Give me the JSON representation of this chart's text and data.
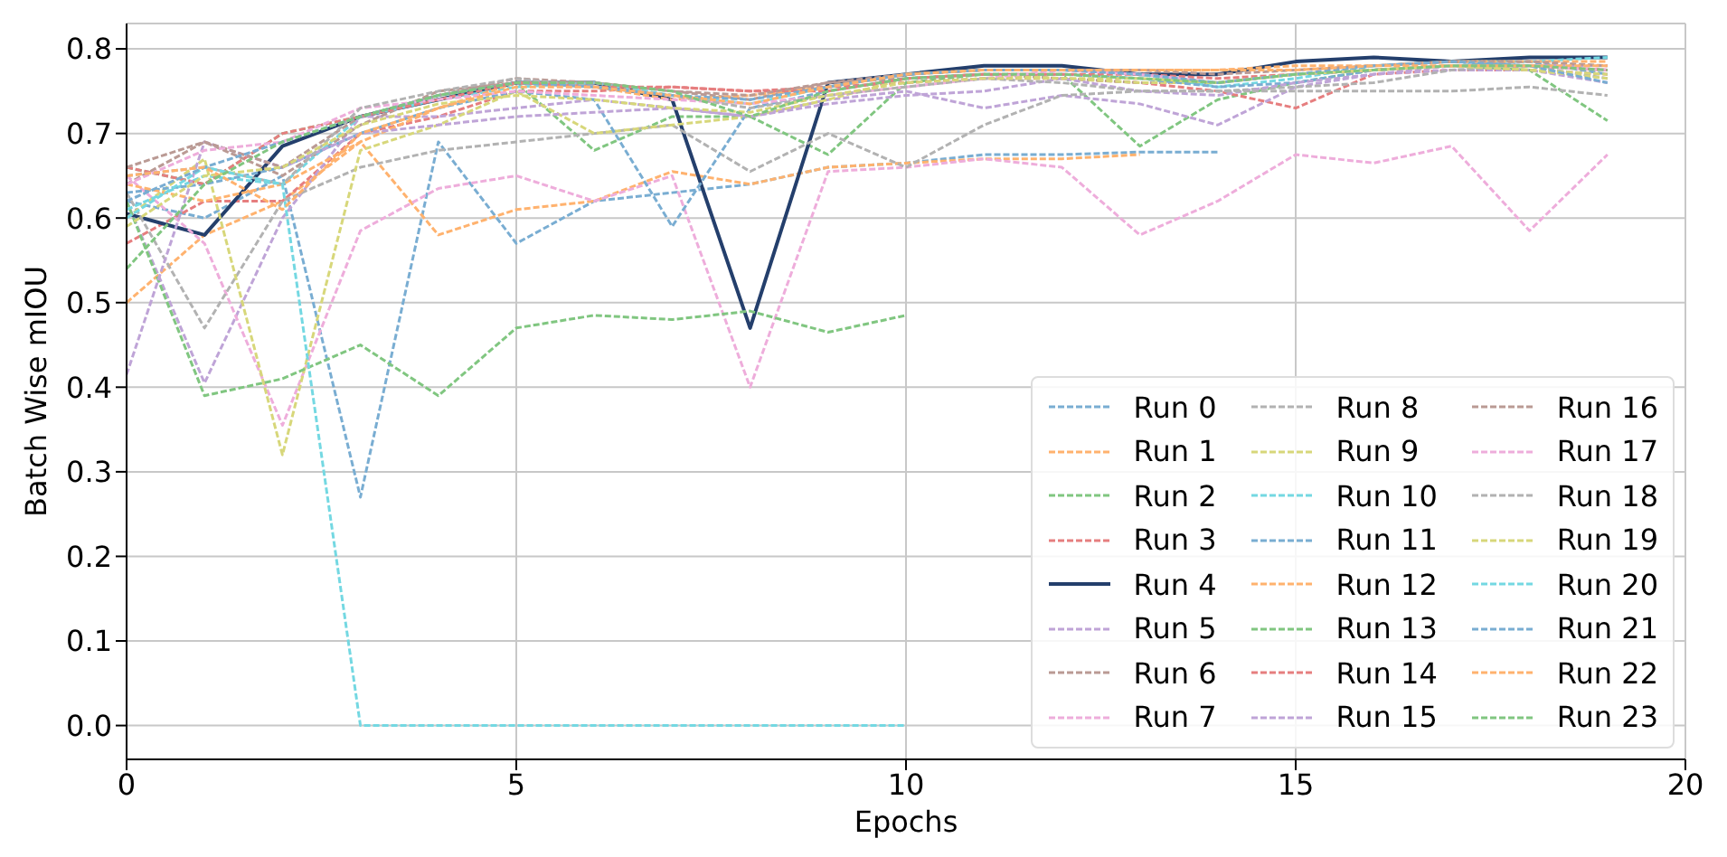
{
  "chart_data": {
    "type": "line",
    "xlabel": "Epochs",
    "ylabel": "Batch Wise mIOU",
    "x": [
      0,
      1,
      2,
      3,
      4,
      5,
      6,
      7,
      8,
      9,
      10,
      11,
      12,
      13,
      14,
      15,
      16,
      17,
      18,
      19
    ],
    "xlim": [
      0,
      20
    ],
    "xticks": [
      0,
      5,
      10,
      15,
      20
    ],
    "ylim": [
      -0.04,
      0.83
    ],
    "yticks": [
      {
        "value": 0,
        "label": "0.0"
      },
      0.1,
      0.2,
      0.3,
      0.4,
      0.5,
      0.6,
      0.7,
      0.8
    ],
    "grid": true,
    "legend": "bottom right",
    "line_style": "dashed",
    "series": [
      {
        "name": "Run 0",
        "color": "#79add2",
        "values": [
          0.62,
          0.6,
          0.65,
          0.27,
          0.69,
          0.57,
          0.62,
          0.63,
          0.64,
          0.66,
          0.665,
          0.675,
          0.675,
          0.678,
          0.678,
          null,
          null,
          null,
          null,
          null
        ]
      },
      {
        "name": "Run 1",
        "color": "#ffb26e",
        "values": [
          0.5,
          0.58,
          0.62,
          0.69,
          0.58,
          0.61,
          0.62,
          0.655,
          0.64,
          0.66,
          0.665,
          0.67,
          0.67,
          0.675,
          null,
          null,
          null,
          null,
          null,
          null
        ]
      },
      {
        "name": "Run 2",
        "color": "#80c680",
        "values": [
          0.66,
          0.64,
          0.7,
          0.72,
          0.745,
          0.76,
          0.68,
          0.72,
          0.72,
          0.675,
          0.76,
          0.77,
          0.77,
          0.685,
          0.74,
          0.76,
          0.775,
          0.78,
          0.775,
          0.715
        ]
      },
      {
        "name": "Run 3",
        "color": "#e67e7f",
        "values": [
          0.57,
          0.62,
          0.62,
          0.7,
          0.72,
          0.75,
          0.75,
          0.755,
          0.75,
          0.755,
          0.76,
          0.765,
          0.765,
          0.76,
          0.75,
          0.73,
          0.77,
          0.775,
          0.775,
          0.77
        ]
      },
      {
        "name": "Run 4",
        "color": "#243f6c",
        "line_style": "solid",
        "values": [
          0.605,
          0.58,
          0.685,
          0.72,
          0.74,
          0.76,
          0.76,
          0.74,
          0.47,
          0.76,
          0.77,
          0.78,
          0.78,
          0.77,
          0.77,
          0.785,
          0.79,
          0.785,
          0.79,
          0.79
        ]
      },
      {
        "name": "Run 5",
        "color": "#bfa4d7",
        "values": [
          0.62,
          0.405,
          0.6,
          0.72,
          0.72,
          0.73,
          0.74,
          0.73,
          0.72,
          0.74,
          0.75,
          0.73,
          0.745,
          0.735,
          0.71,
          0.755,
          0.77,
          0.775,
          0.775,
          0.76
        ]
      },
      {
        "name": "Run 6",
        "color": "#ba9a94",
        "values": [
          0.64,
          0.69,
          0.65,
          0.71,
          0.75,
          0.76,
          0.76,
          0.75,
          0.74,
          0.76,
          0.765,
          0.77,
          0.765,
          0.76,
          0.76,
          0.77,
          0.775,
          0.78,
          0.78,
          0.775
        ]
      },
      {
        "name": "Run 7",
        "color": "#eeaddb",
        "values": [
          0.65,
          0.57,
          0.355,
          0.585,
          0.635,
          0.65,
          0.62,
          0.65,
          0.4,
          0.655,
          0.66,
          0.67,
          0.66,
          0.58,
          0.62,
          0.675,
          0.665,
          0.685,
          0.585,
          0.675
        ]
      },
      {
        "name": "Run 8",
        "color": "#b2b2b2",
        "values": [
          0.63,
          0.47,
          0.62,
          0.66,
          0.68,
          0.69,
          0.7,
          0.71,
          0.655,
          0.7,
          0.66,
          0.71,
          0.745,
          0.75,
          0.75,
          0.755,
          0.76,
          0.775,
          0.78,
          0.765
        ]
      },
      {
        "name": "Run 9",
        "color": "#d7d77a",
        "values": [
          0.6,
          0.67,
          0.32,
          0.68,
          0.71,
          0.75,
          0.7,
          0.71,
          0.72,
          0.74,
          0.765,
          0.77,
          0.765,
          0.76,
          0.76,
          0.77,
          0.775,
          0.78,
          0.775,
          0.765
        ]
      },
      {
        "name": "Run 10",
        "color": "#74d8e2",
        "values": [
          0.61,
          0.65,
          0.64,
          0.72,
          0.74,
          0.755,
          0.76,
          0.745,
          0.735,
          0.755,
          0.77,
          0.775,
          0.775,
          0.77,
          0.755,
          0.765,
          0.78,
          0.785,
          0.785,
          0.79
        ]
      },
      {
        "name": "Run 11",
        "color": "#79add2",
        "values": [
          0.63,
          0.64,
          0.66,
          0.7,
          0.73,
          0.75,
          0.74,
          0.59,
          0.73,
          0.75,
          0.765,
          0.77,
          0.77,
          0.765,
          0.755,
          0.76,
          0.775,
          0.78,
          0.785,
          0.77
        ]
      },
      {
        "name": "Run 12",
        "color": "#ffb26e",
        "values": [
          0.64,
          0.62,
          0.64,
          0.69,
          0.73,
          0.76,
          0.755,
          0.74,
          0.745,
          0.755,
          0.77,
          0.775,
          0.775,
          0.775,
          0.775,
          0.78,
          0.78,
          0.785,
          0.785,
          0.785
        ]
      },
      {
        "name": "Run 13",
        "color": "#80c680",
        "values": [
          0.62,
          0.39,
          0.41,
          0.45,
          0.39,
          0.47,
          0.485,
          0.48,
          0.49,
          0.465,
          0.485,
          null,
          null,
          null,
          null,
          null,
          null,
          null,
          null,
          null
        ]
      },
      {
        "name": "Run 14",
        "color": "#e67e7f",
        "values": [
          0.66,
          0.64,
          0.7,
          0.72,
          0.74,
          0.76,
          0.755,
          0.755,
          0.75,
          0.75,
          0.765,
          0.77,
          0.77,
          0.77,
          0.765,
          0.77,
          0.775,
          0.78,
          0.78,
          0.775
        ]
      },
      {
        "name": "Run 15",
        "color": "#bfa4d7",
        "values": [
          0.415,
          0.69,
          0.66,
          0.7,
          0.71,
          0.72,
          0.725,
          0.73,
          0.72,
          0.735,
          0.745,
          0.75,
          0.765,
          0.75,
          0.745,
          0.76,
          0.77,
          0.78,
          0.78,
          0.78
        ]
      },
      {
        "name": "Run 16",
        "color": "#ba9a94",
        "values": [
          0.66,
          0.69,
          0.66,
          0.72,
          0.745,
          0.765,
          0.76,
          0.75,
          0.745,
          0.76,
          0.77,
          0.775,
          0.775,
          0.775,
          0.77,
          0.775,
          0.78,
          0.785,
          0.785,
          0.78
        ]
      },
      {
        "name": "Run 17",
        "color": "#eeaddb",
        "values": [
          0.64,
          0.68,
          0.69,
          0.73,
          0.74,
          0.75,
          0.745,
          0.74,
          0.735,
          0.745,
          0.755,
          0.765,
          0.775,
          0.77,
          0.76,
          0.77,
          0.775,
          0.78,
          0.78,
          0.775
        ]
      },
      {
        "name": "Run 18",
        "color": "#b2b2b2",
        "values": [
          0.65,
          0.66,
          0.64,
          0.73,
          0.75,
          0.765,
          0.755,
          0.745,
          0.73,
          0.745,
          0.755,
          0.765,
          0.76,
          0.75,
          0.75,
          0.75,
          0.75,
          0.75,
          0.755,
          0.745
        ]
      },
      {
        "name": "Run 19",
        "color": "#d7d77a",
        "values": [
          0.59,
          0.65,
          0.66,
          0.71,
          0.735,
          0.745,
          0.74,
          0.73,
          0.725,
          0.745,
          0.76,
          0.765,
          0.765,
          0.765,
          0.76,
          0.77,
          0.775,
          0.78,
          0.775,
          0.77
        ]
      },
      {
        "name": "Run 20",
        "color": "#74d8e2",
        "values": [
          0.6,
          0.66,
          0.64,
          0,
          0,
          0,
          0,
          0,
          0,
          0,
          0,
          null,
          null,
          null,
          null,
          null,
          null,
          null,
          null,
          null
        ]
      },
      {
        "name": "Run 21",
        "color": "#79add2",
        "values": [
          0.62,
          0.66,
          0.69,
          0.72,
          0.745,
          0.76,
          0.755,
          0.745,
          0.74,
          0.755,
          0.77,
          0.775,
          0.775,
          0.77,
          0.76,
          0.77,
          0.78,
          0.785,
          0.78,
          0.76
        ]
      },
      {
        "name": "Run 22",
        "color": "#ffb26e",
        "values": [
          0.65,
          0.66,
          0.61,
          0.7,
          0.73,
          0.755,
          0.755,
          0.745,
          0.735,
          0.755,
          0.77,
          0.775,
          0.775,
          0.775,
          0.775,
          0.775,
          0.78,
          0.78,
          0.78,
          0.78
        ]
      },
      {
        "name": "Run 23",
        "color": "#80c680",
        "values": [
          0.54,
          0.64,
          0.69,
          0.72,
          0.745,
          0.76,
          0.76,
          0.75,
          0.72,
          0.75,
          0.765,
          0.77,
          0.77,
          0.765,
          0.76,
          0.77,
          0.775,
          0.78,
          0.78,
          0.775
        ]
      }
    ]
  }
}
